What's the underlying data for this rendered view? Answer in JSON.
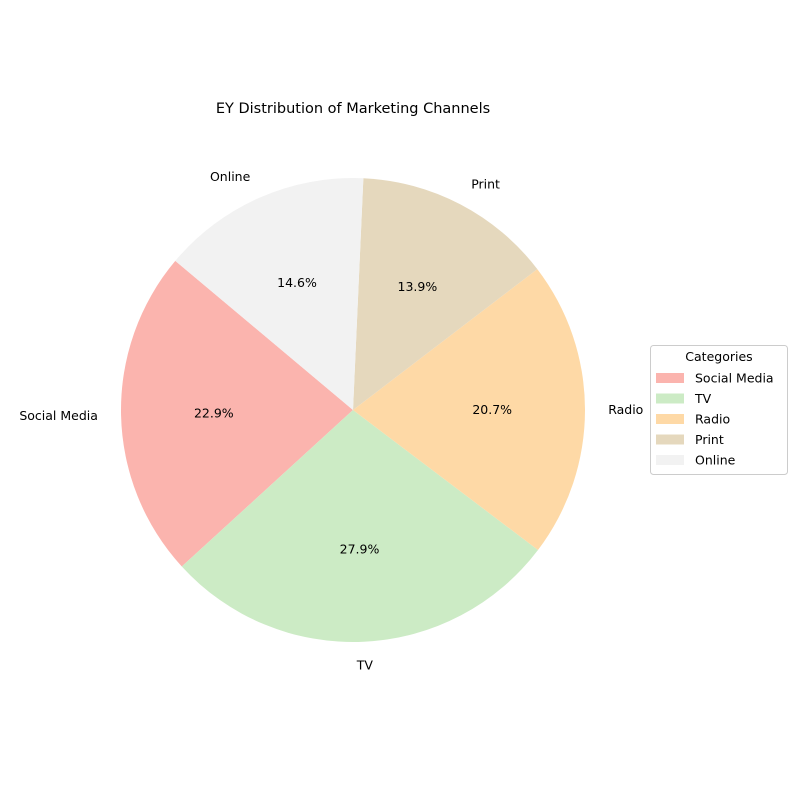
{
  "chart_data": {
    "type": "pie",
    "title": "EY Distribution of Marketing Channels",
    "categories": [
      "Social Media",
      "TV",
      "Radio",
      "Print",
      "Online"
    ],
    "values": [
      22.9,
      27.9,
      20.7,
      13.9,
      14.6
    ],
    "percent_labels": [
      "22.9%",
      "27.9%",
      "20.7%",
      "13.9%",
      "14.6%"
    ],
    "colors": [
      "#FBB4AE",
      "#CCEBC5",
      "#FED9A6",
      "#E5D8BD",
      "#F2F2F2"
    ],
    "start_angle_deg": 140,
    "direction": "counterclockwise",
    "legend": {
      "title": "Categories",
      "placement": "center-right",
      "entries": [
        "Social Media",
        "TV",
        "Radio",
        "Print",
        "Online"
      ]
    }
  }
}
